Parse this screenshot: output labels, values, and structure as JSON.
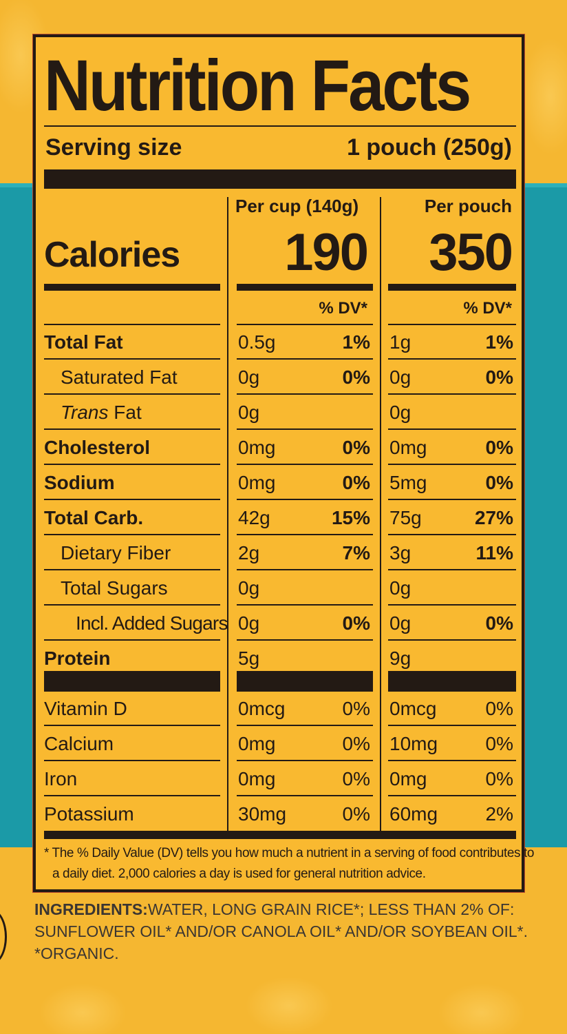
{
  "label": {
    "title": "Nutrition Facts",
    "serving_label": "Serving size",
    "serving_value": "1 pouch (250g)",
    "columns": [
      {
        "header": "Per cup (140g)",
        "calories": "190",
        "dv_header": "% DV*"
      },
      {
        "header": "Per pouch",
        "calories": "350",
        "dv_header": "% DV*"
      }
    ],
    "calories_label": "Calories",
    "rows": [
      {
        "name": "Total Fat",
        "cup_amt": "0.5g",
        "cup_dv": "1%",
        "pouch_amt": "1g",
        "pouch_dv": "1%"
      },
      {
        "name": "Saturated Fat",
        "cup_amt": "0g",
        "cup_dv": "0%",
        "pouch_amt": "0g",
        "pouch_dv": "0%"
      },
      {
        "name_italic": "Trans",
        "name": " Fat",
        "cup_amt": "0g",
        "cup_dv": "",
        "pouch_amt": "0g",
        "pouch_dv": ""
      },
      {
        "name": "Cholesterol",
        "cup_amt": "0mg",
        "cup_dv": "0%",
        "pouch_amt": "0mg",
        "pouch_dv": "0%"
      },
      {
        "name": "Sodium",
        "cup_amt": "0mg",
        "cup_dv": "0%",
        "pouch_amt": "5mg",
        "pouch_dv": "0%"
      },
      {
        "name": "Total Carb.",
        "cup_amt": "42g",
        "cup_dv": "15%",
        "pouch_amt": "75g",
        "pouch_dv": "27%"
      },
      {
        "name": "Dietary Fiber",
        "cup_amt": "2g",
        "cup_dv": "7%",
        "pouch_amt": "3g",
        "pouch_dv": "11%"
      },
      {
        "name": "Total Sugars",
        "cup_amt": "0g",
        "cup_dv": "",
        "pouch_amt": "0g",
        "pouch_dv": ""
      },
      {
        "name": "Incl. Added Sugars",
        "cup_amt": "0g",
        "cup_dv": "0%",
        "pouch_amt": "0g",
        "pouch_dv": "0%"
      },
      {
        "name": "Protein",
        "cup_amt": "5g",
        "cup_dv": "",
        "pouch_amt": "9g",
        "pouch_dv": ""
      }
    ],
    "micros": [
      {
        "name": "Vitamin D",
        "cup_amt": "0mcg",
        "cup_dv": "0%",
        "pouch_amt": "0mcg",
        "pouch_dv": "0%"
      },
      {
        "name": "Calcium",
        "cup_amt": "0mg",
        "cup_dv": "0%",
        "pouch_amt": "10mg",
        "pouch_dv": "0%"
      },
      {
        "name": "Iron",
        "cup_amt": "0mg",
        "cup_dv": "0%",
        "pouch_amt": "0mg",
        "pouch_dv": "0%"
      },
      {
        "name": "Potassium",
        "cup_amt": "30mg",
        "cup_dv": "0%",
        "pouch_amt": "60mg",
        "pouch_dv": "2%"
      }
    ],
    "footnote_line1": "* The % Daily Value (DV) tells you how much a nutrient in a serving of food contributes to",
    "footnote_line2": "a daily diet. 2,000 calories a day is used for general nutrition advice."
  },
  "ingredients": {
    "heading": "INGREDIENTS:",
    "line1": "WATER, LONG GRAIN RICE*; LESS THAN 2% OF:",
    "line2": "SUNFLOWER OIL* AND/OR CANOLA OIL* AND/OR SOYBEAN OIL*.",
    "line3": "*ORGANIC."
  },
  "colors": {
    "label_bg": "#f9b930",
    "ink": "#231a14",
    "teal": "#1b9aa7"
  }
}
